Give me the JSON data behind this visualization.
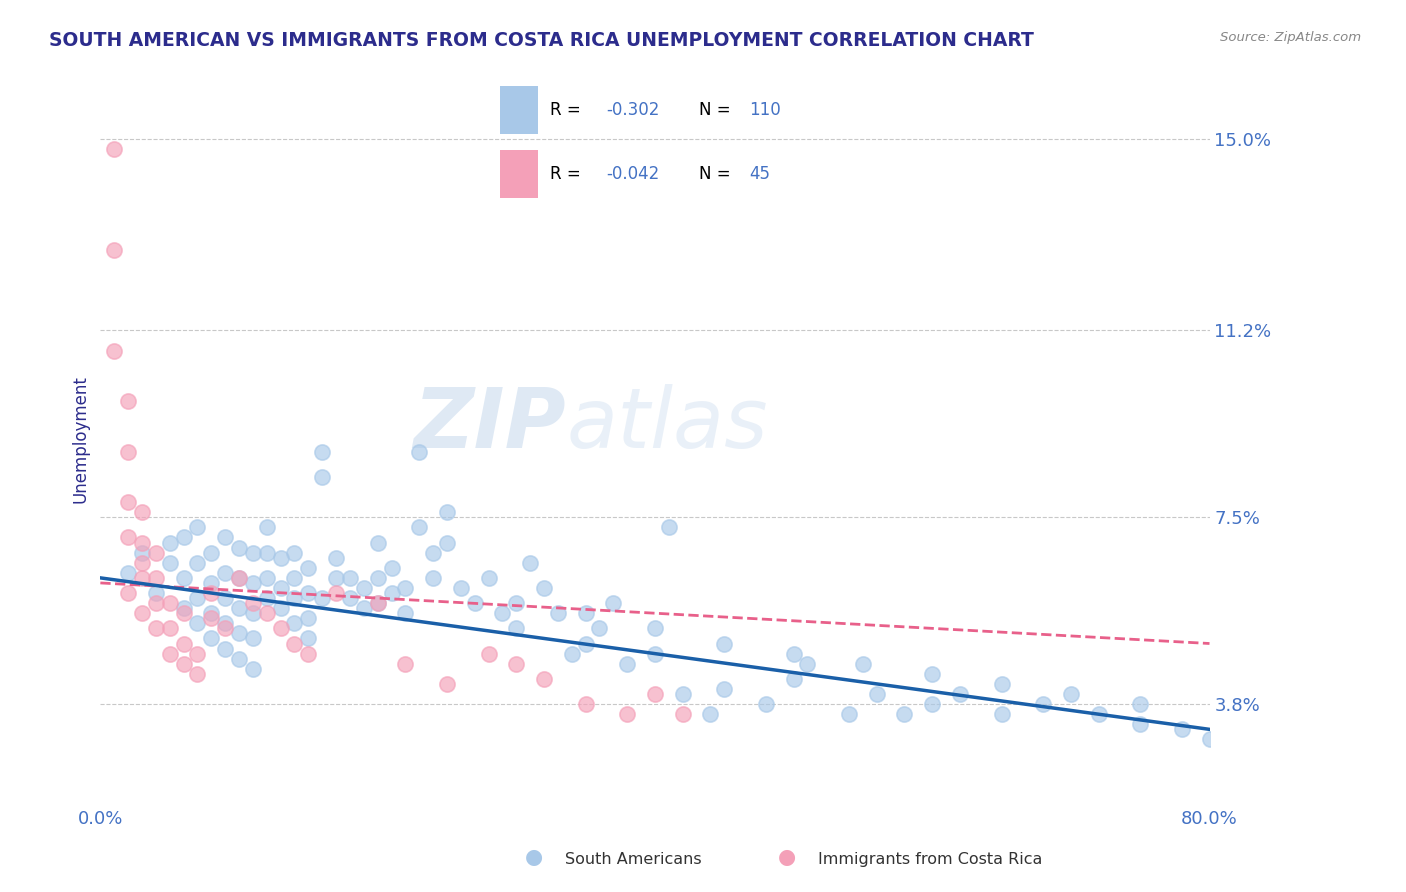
{
  "title": "SOUTH AMERICAN VS IMMIGRANTS FROM COSTA RICA UNEMPLOYMENT CORRELATION CHART",
  "source_text": "Source: ZipAtlas.com",
  "ylabel": "Unemployment",
  "xlim": [
    0.0,
    0.8
  ],
  "ylim": [
    0.018,
    0.163
  ],
  "yticks": [
    0.038,
    0.075,
    0.112,
    0.15
  ],
  "ytick_labels": [
    "3.8%",
    "7.5%",
    "11.2%",
    "15.0%"
  ],
  "xticks": [
    0.0,
    0.1,
    0.2,
    0.3,
    0.4,
    0.5,
    0.6,
    0.7,
    0.8
  ],
  "xtick_labels": [
    "0.0%",
    "",
    "",
    "",
    "",
    "",
    "",
    "",
    "80.0%"
  ],
  "watermark": "ZIPatlas",
  "legend_R1": "-0.302",
  "legend_N1": "110",
  "legend_R2": "-0.042",
  "legend_N2": "45",
  "blue_color": "#a8c8e8",
  "pink_color": "#f4a0b8",
  "trend_blue": "#1a5fa8",
  "trend_pink": "#e8608a",
  "title_color": "#2c2c8c",
  "axis_label_color": "#2c2c8c",
  "tick_color": "#4472c4",
  "grid_color": "#c8c8c8",
  "blue_scatter_x": [
    0.02,
    0.03,
    0.04,
    0.05,
    0.05,
    0.06,
    0.06,
    0.06,
    0.07,
    0.07,
    0.07,
    0.07,
    0.08,
    0.08,
    0.08,
    0.08,
    0.09,
    0.09,
    0.09,
    0.09,
    0.09,
    0.1,
    0.1,
    0.1,
    0.1,
    0.1,
    0.11,
    0.11,
    0.11,
    0.11,
    0.11,
    0.12,
    0.12,
    0.12,
    0.12,
    0.13,
    0.13,
    0.13,
    0.14,
    0.14,
    0.14,
    0.14,
    0.15,
    0.15,
    0.15,
    0.15,
    0.16,
    0.16,
    0.16,
    0.17,
    0.17,
    0.18,
    0.18,
    0.19,
    0.19,
    0.2,
    0.2,
    0.2,
    0.21,
    0.21,
    0.22,
    0.22,
    0.23,
    0.23,
    0.24,
    0.24,
    0.25,
    0.25,
    0.26,
    0.27,
    0.28,
    0.29,
    0.3,
    0.31,
    0.32,
    0.33,
    0.34,
    0.35,
    0.36,
    0.37,
    0.38,
    0.4,
    0.41,
    0.42,
    0.44,
    0.45,
    0.48,
    0.5,
    0.51,
    0.54,
    0.56,
    0.58,
    0.6,
    0.62,
    0.65,
    0.68,
    0.72,
    0.75,
    0.78,
    0.8,
    0.3,
    0.35,
    0.4,
    0.45,
    0.5,
    0.55,
    0.6,
    0.65,
    0.7,
    0.75
  ],
  "blue_scatter_y": [
    0.064,
    0.068,
    0.06,
    0.066,
    0.07,
    0.057,
    0.063,
    0.071,
    0.054,
    0.059,
    0.066,
    0.073,
    0.051,
    0.056,
    0.062,
    0.068,
    0.049,
    0.054,
    0.059,
    0.064,
    0.071,
    0.047,
    0.052,
    0.057,
    0.063,
    0.069,
    0.045,
    0.051,
    0.056,
    0.062,
    0.068,
    0.059,
    0.063,
    0.068,
    0.073,
    0.057,
    0.061,
    0.067,
    0.054,
    0.059,
    0.063,
    0.068,
    0.051,
    0.055,
    0.06,
    0.065,
    0.083,
    0.088,
    0.059,
    0.063,
    0.067,
    0.059,
    0.063,
    0.057,
    0.061,
    0.058,
    0.063,
    0.07,
    0.06,
    0.065,
    0.056,
    0.061,
    0.088,
    0.073,
    0.063,
    0.068,
    0.07,
    0.076,
    0.061,
    0.058,
    0.063,
    0.056,
    0.053,
    0.066,
    0.061,
    0.056,
    0.048,
    0.05,
    0.053,
    0.058,
    0.046,
    0.048,
    0.073,
    0.04,
    0.036,
    0.041,
    0.038,
    0.043,
    0.046,
    0.036,
    0.04,
    0.036,
    0.038,
    0.04,
    0.036,
    0.038,
    0.036,
    0.034,
    0.033,
    0.031,
    0.058,
    0.056,
    0.053,
    0.05,
    0.048,
    0.046,
    0.044,
    0.042,
    0.04,
    0.038
  ],
  "pink_scatter_x": [
    0.01,
    0.01,
    0.01,
    0.02,
    0.02,
    0.02,
    0.02,
    0.02,
    0.03,
    0.03,
    0.03,
    0.03,
    0.03,
    0.04,
    0.04,
    0.04,
    0.04,
    0.05,
    0.05,
    0.05,
    0.06,
    0.06,
    0.06,
    0.07,
    0.07,
    0.08,
    0.08,
    0.09,
    0.1,
    0.11,
    0.12,
    0.13,
    0.14,
    0.15,
    0.17,
    0.2,
    0.22,
    0.25,
    0.28,
    0.3,
    0.32,
    0.35,
    0.38,
    0.4,
    0.42
  ],
  "pink_scatter_y": [
    0.148,
    0.128,
    0.108,
    0.098,
    0.088,
    0.078,
    0.071,
    0.06,
    0.056,
    0.063,
    0.066,
    0.07,
    0.076,
    0.053,
    0.058,
    0.063,
    0.068,
    0.048,
    0.053,
    0.058,
    0.046,
    0.05,
    0.056,
    0.044,
    0.048,
    0.06,
    0.055,
    0.053,
    0.063,
    0.058,
    0.056,
    0.053,
    0.05,
    0.048,
    0.06,
    0.058,
    0.046,
    0.042,
    0.048,
    0.046,
    0.043,
    0.038,
    0.036,
    0.04,
    0.036
  ]
}
